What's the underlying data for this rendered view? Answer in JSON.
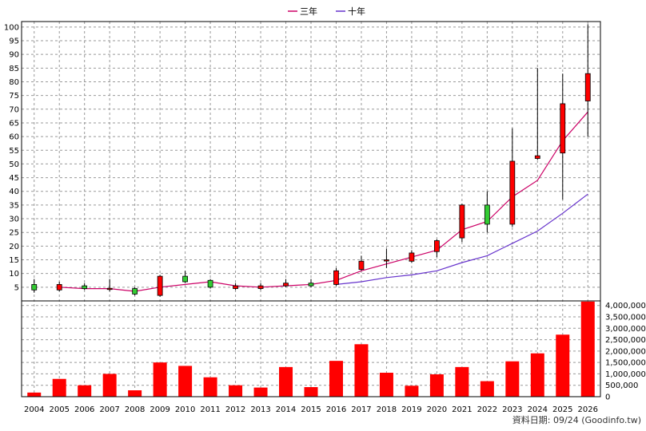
{
  "chart_data": {
    "type": "candlestick",
    "legend": [
      "三年",
      "十年"
    ],
    "legend_placement": "top-center",
    "grid": true,
    "categories": [
      "2004",
      "2005",
      "2006",
      "2007",
      "2008",
      "2009",
      "2010",
      "2011",
      "2012",
      "2013",
      "2014",
      "2015",
      "2016",
      "2017",
      "2018",
      "2019",
      "2020",
      "2021",
      "2022",
      "2023",
      "2024",
      "2025",
      "2026"
    ],
    "price_axis": {
      "min": 0,
      "max": 102,
      "ticks": [
        5,
        10,
        15,
        20,
        25,
        30,
        35,
        40,
        45,
        50,
        55,
        60,
        65,
        70,
        75,
        80,
        85,
        90,
        95,
        100
      ]
    },
    "volume_axis": {
      "min": 0,
      "max": 4200000,
      "ticks": [
        0,
        500000,
        1000000,
        1500000,
        2000000,
        2500000,
        3000000,
        3500000,
        4000000
      ],
      "tick_labels": [
        "0",
        "500,000",
        "1,000,000",
        "1,500,000",
        "2,000,000",
        "2,500,000",
        "3,000,000",
        "3,500,000",
        "4,000,000"
      ]
    },
    "candles": [
      {
        "open": 4.0,
        "close": 6.0,
        "high": 8.0,
        "low": 3.0,
        "color": "green"
      },
      {
        "open": 6.0,
        "close": 4.0,
        "high": 7.0,
        "low": 3.5,
        "color": "red"
      },
      {
        "open": 5.5,
        "close": 4.5,
        "high": 6.5,
        "low": 4.0,
        "color": "green"
      },
      {
        "open": 4.4,
        "close": 4.6,
        "high": 8.0,
        "low": 3.5,
        "color": "red"
      },
      {
        "open": 4.5,
        "close": 2.5,
        "high": 5.0,
        "low": 2.0,
        "color": "green"
      },
      {
        "open": 2.0,
        "close": 9.0,
        "high": 9.5,
        "low": 1.5,
        "color": "red"
      },
      {
        "open": 7.0,
        "close": 9.0,
        "high": 11.0,
        "low": 6.5,
        "color": "green"
      },
      {
        "open": 7.5,
        "close": 5.0,
        "high": 8.0,
        "low": 4.5,
        "color": "green"
      },
      {
        "open": 5.5,
        "close": 4.5,
        "high": 6.5,
        "low": 4.0,
        "color": "red"
      },
      {
        "open": 4.5,
        "close": 5.5,
        "high": 6.5,
        "low": 4.0,
        "color": "red"
      },
      {
        "open": 5.5,
        "close": 6.5,
        "high": 8.0,
        "low": 5.0,
        "color": "red"
      },
      {
        "open": 6.5,
        "close": 5.5,
        "high": 8.0,
        "low": 5.0,
        "color": "green"
      },
      {
        "open": 6.0,
        "close": 11.0,
        "high": 12.0,
        "low": 5.5,
        "color": "red"
      },
      {
        "open": 11.5,
        "close": 14.5,
        "high": 16.5,
        "low": 11.0,
        "color": "red"
      },
      {
        "open": 15.0,
        "close": 15.0,
        "high": 19.0,
        "low": 12.0,
        "color": "red"
      },
      {
        "open": 14.5,
        "close": 17.5,
        "high": 18.5,
        "low": 14.0,
        "color": "red"
      },
      {
        "open": 18.0,
        "close": 22.0,
        "high": 22.5,
        "low": 16.0,
        "color": "red"
      },
      {
        "open": 23.0,
        "close": 35.0,
        "high": 35.5,
        "low": 21.5,
        "color": "red"
      },
      {
        "open": 35.0,
        "close": 28.0,
        "high": 40.0,
        "low": 25.0,
        "color": "green"
      },
      {
        "open": 28.0,
        "close": 51.0,
        "high": 63.0,
        "low": 27.0,
        "color": "red"
      },
      {
        "open": 52.0,
        "close": 53.0,
        "high": 85.0,
        "low": 51.5,
        "color": "red"
      },
      {
        "open": 54.0,
        "close": 72.0,
        "high": 83.0,
        "low": 37.0,
        "color": "red"
      },
      {
        "open": 73.0,
        "close": 83.0,
        "high": 101.0,
        "low": 60.0,
        "color": "red"
      }
    ],
    "series": [
      {
        "name": "三年",
        "color": "#cc0066",
        "values": [
          null,
          5.0,
          4.5,
          4.5,
          3.5,
          5.0,
          6.0,
          7.0,
          5.5,
          5.0,
          5.5,
          6.0,
          7.5,
          11.0,
          13.5,
          16.0,
          18.5,
          26.0,
          29.0,
          38.0,
          44.0,
          58.5,
          69.0
        ]
      },
      {
        "name": "十年",
        "color": "#6633cc",
        "values": [
          null,
          null,
          null,
          null,
          null,
          null,
          null,
          null,
          null,
          null,
          null,
          null,
          6.0,
          7.0,
          8.5,
          9.5,
          11.0,
          14.0,
          16.5,
          21.0,
          25.5,
          32.0,
          39.0
        ]
      }
    ],
    "volume": [
      180000,
      780000,
      500000,
      1000000,
      280000,
      1500000,
      1350000,
      850000,
      500000,
      400000,
      1300000,
      420000,
      1570000,
      2300000,
      1050000,
      480000,
      980000,
      1300000,
      680000,
      1550000,
      1900000,
      2720000,
      4170000
    ]
  },
  "source_text": "資料日期: 09/24  (Goodinfo.tw)"
}
